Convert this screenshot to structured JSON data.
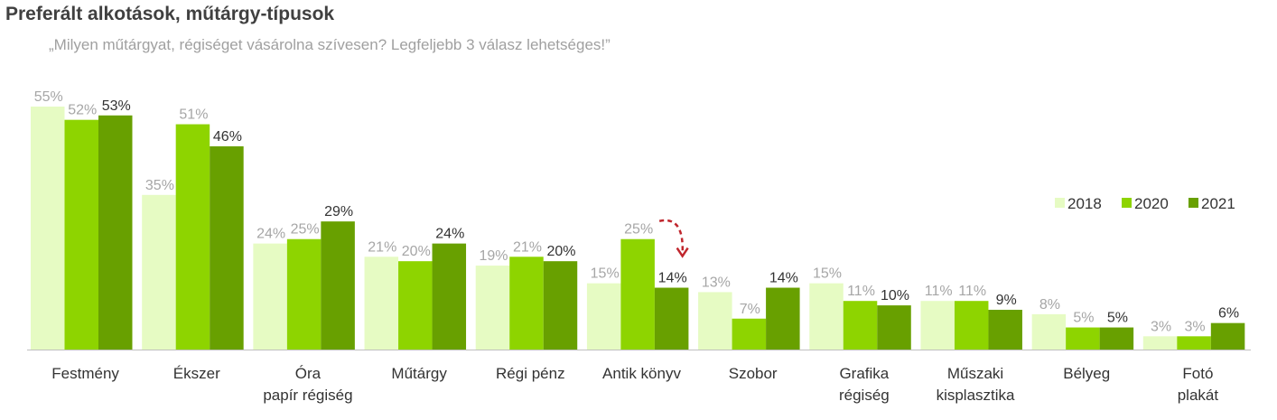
{
  "title": "Preferált alkotások, műtárgy-típusok",
  "subtitle": "„Milyen műtárgyat, régiséget vásárolna szívesen? Legfeljebb 3 válasz lehetséges!”",
  "colors": {
    "2018": "#e6fbc3",
    "2020": "#8ed400",
    "2021": "#68a000",
    "label_2018": "#a6a6a6",
    "label_2020": "#a6a6a6",
    "label_2021": "#333333",
    "arrow": "#c0262d"
  },
  "chart_data": {
    "type": "bar",
    "categories": [
      [
        "Festmény"
      ],
      [
        "Ékszer"
      ],
      [
        "Óra",
        "papír régiség"
      ],
      [
        "Műtárgy"
      ],
      [
        "Régi pénz"
      ],
      [
        "Antik könyv"
      ],
      [
        "Szobor"
      ],
      [
        "Grafika",
        "régiség"
      ],
      [
        "Műszaki",
        "kisplasztika"
      ],
      [
        "Bélyeg"
      ],
      [
        "Fotó",
        "plakát"
      ]
    ],
    "series": [
      {
        "name": "2018",
        "values": [
          55,
          35,
          24,
          21,
          19,
          15,
          13,
          15,
          11,
          8,
          3
        ]
      },
      {
        "name": "2020",
        "values": [
          52,
          51,
          25,
          20,
          21,
          25,
          7,
          11,
          11,
          5,
          3
        ]
      },
      {
        "name": "2021",
        "values": [
          53,
          46,
          29,
          24,
          20,
          14,
          14,
          10,
          9,
          5,
          6
        ]
      }
    ],
    "value_suffix": "%",
    "ylim": [
      0,
      55
    ],
    "legend_position": "right",
    "annotation": {
      "type": "curved-dashed-arrow",
      "category_index": 5,
      "from_series": "2020",
      "to_series": "2021"
    }
  }
}
